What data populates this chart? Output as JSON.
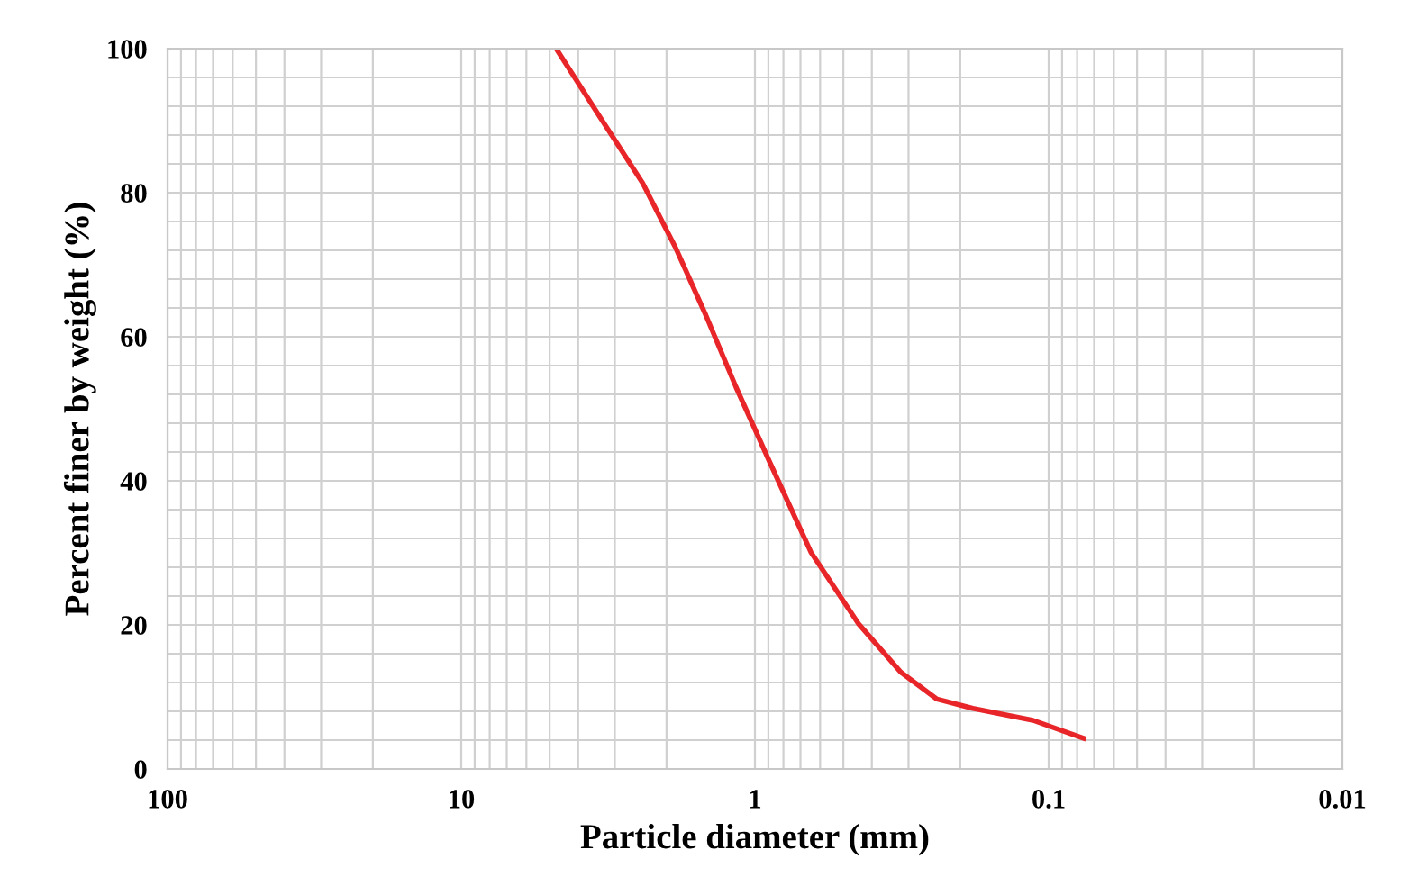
{
  "chart_data": {
    "type": "line",
    "xlabel": "Particle diameter (mm)",
    "ylabel": "Percent finer by weight (%)",
    "log": "x",
    "xlim": [
      100,
      0.01
    ],
    "xticks": [
      100,
      10,
      1,
      0.1,
      0.01
    ],
    "ylim": [
      0,
      100
    ],
    "yticks": [
      0,
      20,
      40,
      60,
      80,
      100
    ],
    "grid": true,
    "marker": "none",
    "line_style": "solid",
    "series": [
      {
        "color": "#e8262a",
        "x": [
          4.75,
          3.37,
          2.41,
          1.86,
          1.47,
          1.16,
          0.9,
          0.645,
          0.443,
          0.318,
          0.24,
          0.181,
          0.113,
          0.076
        ],
        "values": [
          100,
          90.5,
          81.3,
          72.3,
          63,
          53,
          43,
          30.1,
          20.1,
          13.4,
          9.7,
          8.4,
          6.75,
          4.25
        ]
      }
    ]
  }
}
